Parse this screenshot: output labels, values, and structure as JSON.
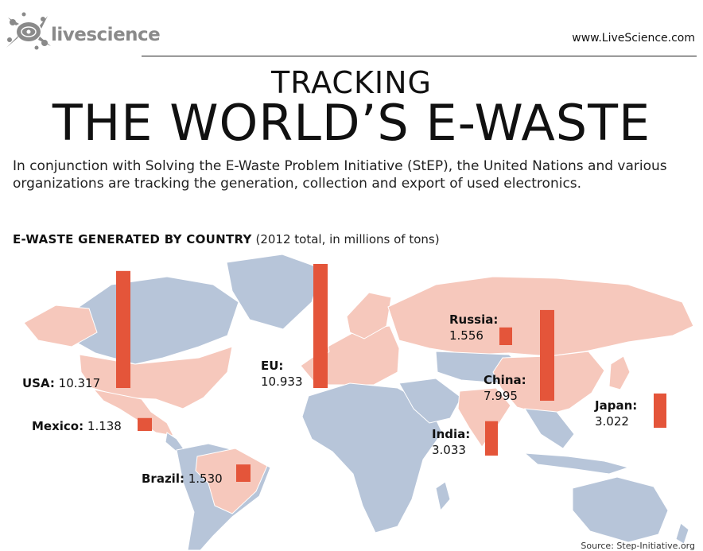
{
  "header": {
    "brand": "livescience",
    "site_url": "www.LiveScience.com",
    "logo_icon": "splat-logo-icon"
  },
  "title": {
    "line1": "TRACKING",
    "line2": "THE WORLD’S E-WASTE"
  },
  "intro": "In conjunction with Solving the E-Waste Problem Initiative (StEP), the United Nations and various organizations are tracking the generation, collection and export of used electronics.",
  "chart_data": {
    "type": "bar",
    "title": "E-WASTE GENERATED BY COUNTRY",
    "subtitle": "(2012 total, in millions of tons)",
    "categories": [
      "USA",
      "EU",
      "Russia",
      "China",
      "Japan",
      "Mexico",
      "India",
      "Brazil"
    ],
    "values": [
      10.317,
      10.933,
      1.556,
      7.995,
      3.022,
      1.138,
      3.033,
      1.53
    ],
    "value_labels": [
      "10.317",
      "10.933",
      "1.556",
      "7.995",
      "3.022",
      "1.138",
      "3.033",
      "1.530"
    ],
    "bar_color": "#e4553a",
    "highlight_land_color": "#f6c8bc",
    "other_land_color": "#b7c5d9"
  },
  "source": "Source: Step-Initiative.org"
}
